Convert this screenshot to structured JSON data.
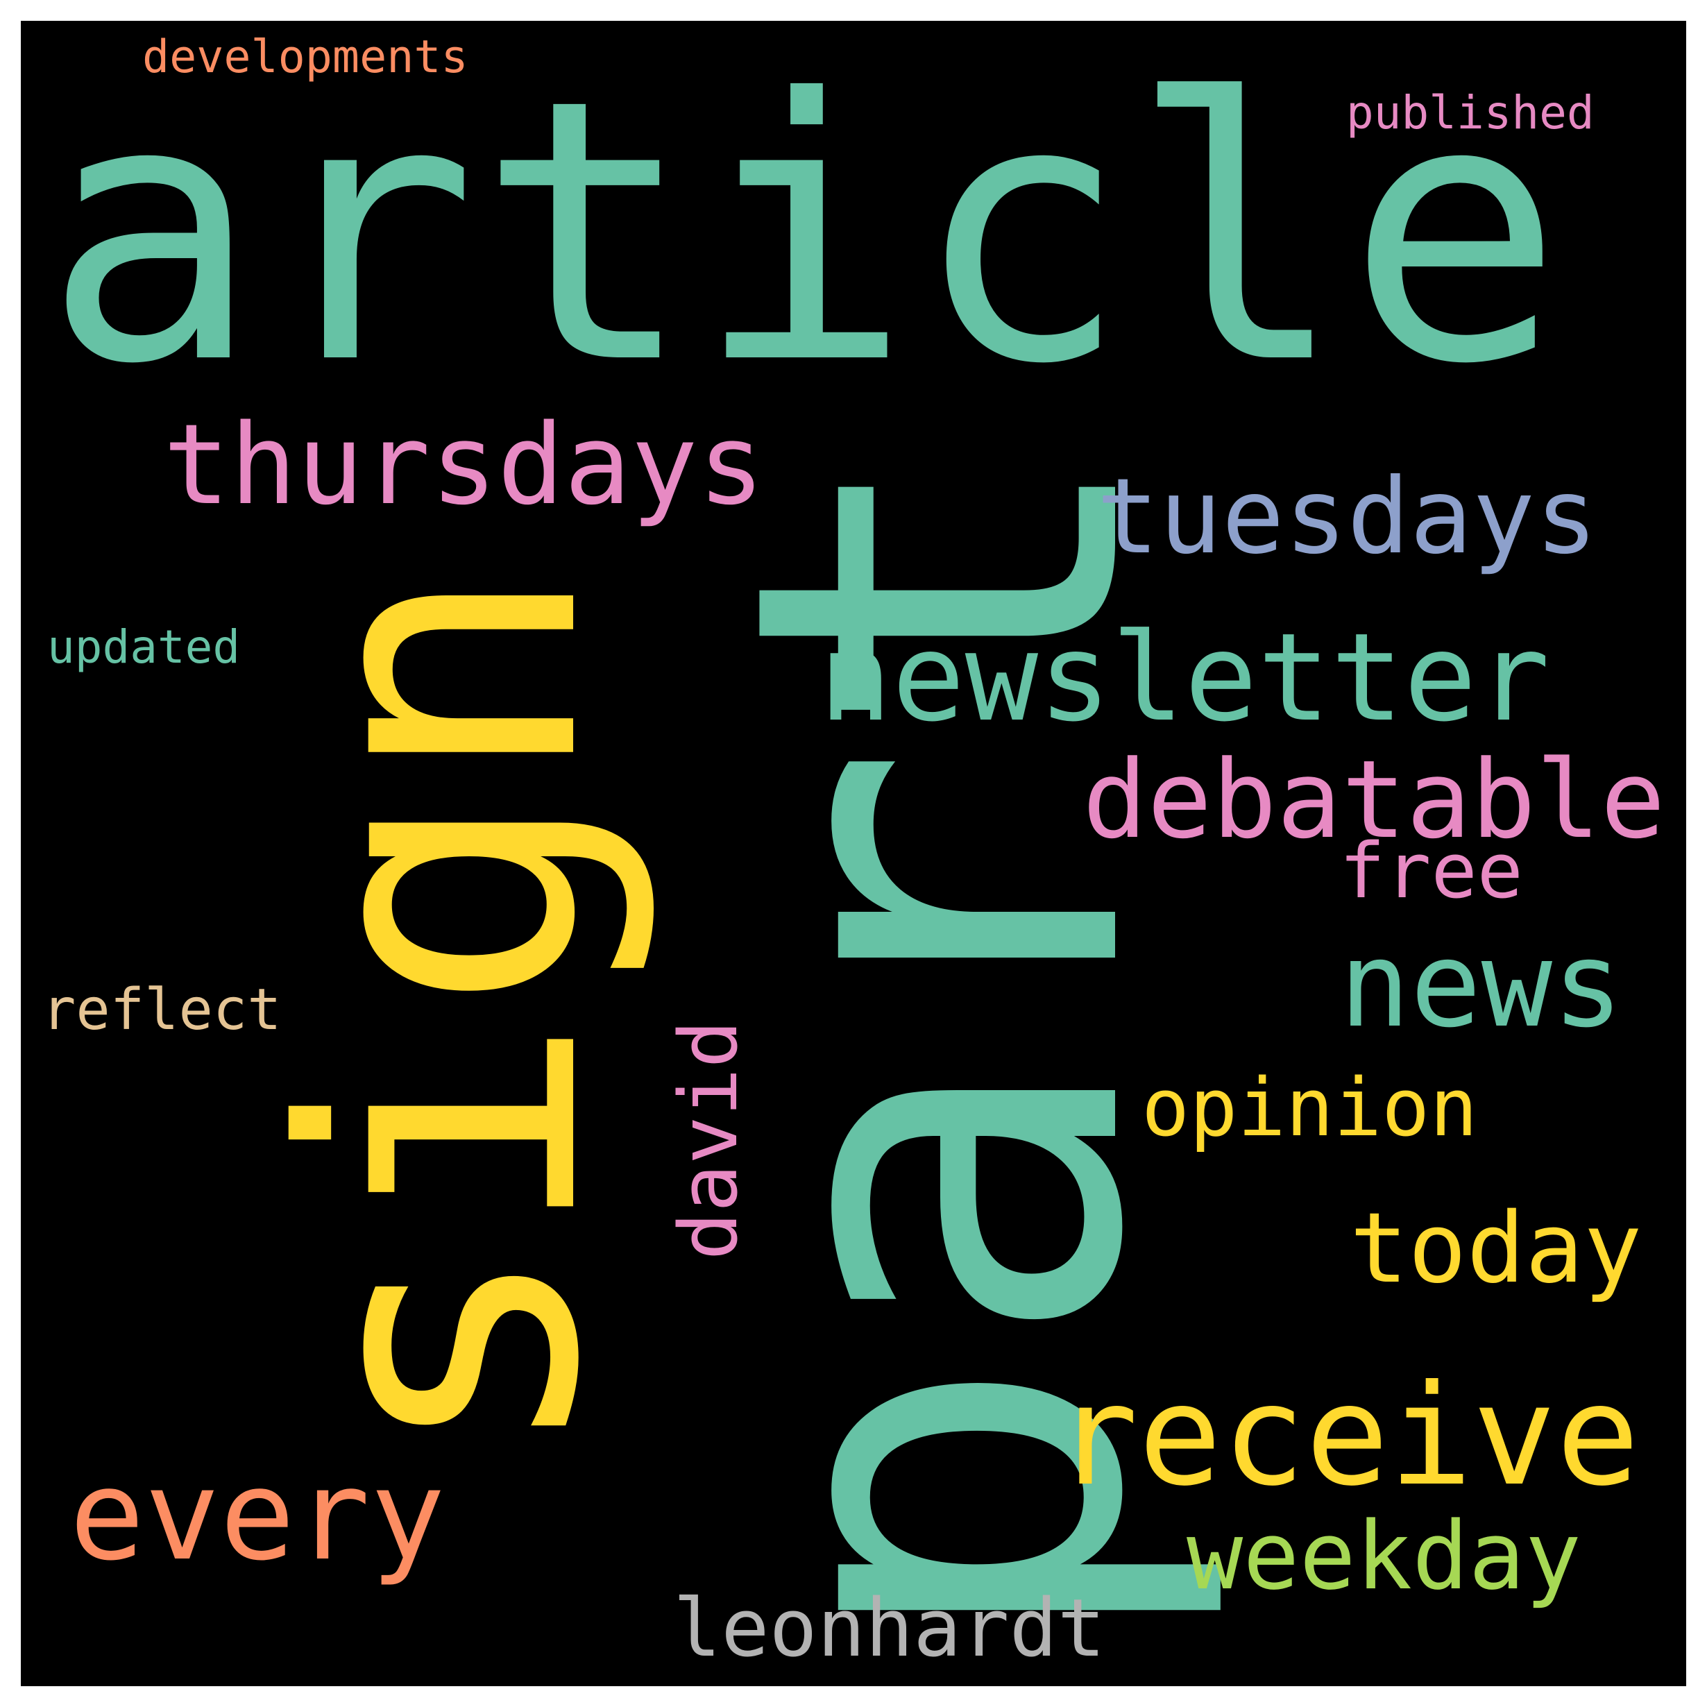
{
  "background_color": "#000000",
  "frame_color": "#ffffff",
  "words": [
    {
      "id": "article",
      "text": "article",
      "color": "#66c2a5",
      "orientation": "horizontal"
    },
    {
      "id": "part",
      "text": "part",
      "color": "#66c2a5",
      "orientation": "vertical"
    },
    {
      "id": "sign",
      "text": "sign",
      "color": "#ffd92f",
      "orientation": "vertical"
    },
    {
      "id": "thursdays",
      "text": "thursdays",
      "color": "#e78ac3",
      "orientation": "horizontal"
    },
    {
      "id": "tuesdays",
      "text": "tuesdays",
      "color": "#8da0cb",
      "orientation": "horizontal"
    },
    {
      "id": "newsletter",
      "text": "newsletter",
      "color": "#66c2a5",
      "orientation": "horizontal"
    },
    {
      "id": "debatable",
      "text": "debatable",
      "color": "#e78ac3",
      "orientation": "horizontal"
    },
    {
      "id": "free",
      "text": "free",
      "color": "#e78ac3",
      "orientation": "horizontal"
    },
    {
      "id": "news",
      "text": "news",
      "color": "#66c2a5",
      "orientation": "horizontal"
    },
    {
      "id": "opinion",
      "text": "opinion",
      "color": "#ffd92f",
      "orientation": "horizontal"
    },
    {
      "id": "today",
      "text": "today",
      "color": "#ffd92f",
      "orientation": "horizontal"
    },
    {
      "id": "receive",
      "text": "receive",
      "color": "#ffd92f",
      "orientation": "horizontal"
    },
    {
      "id": "weekday",
      "text": "weekday",
      "color": "#a6d854",
      "orientation": "horizontal"
    },
    {
      "id": "leonhardt",
      "text": "leonhardt",
      "color": "#b3b3b3",
      "orientation": "horizontal"
    },
    {
      "id": "every",
      "text": "every",
      "color": "#fc8d62",
      "orientation": "horizontal"
    },
    {
      "id": "david",
      "text": "david",
      "color": "#e78ac3",
      "orientation": "vertical"
    },
    {
      "id": "reflect",
      "text": "reflect",
      "color": "#e5c494",
      "orientation": "horizontal"
    },
    {
      "id": "updated",
      "text": "updated",
      "color": "#66c2a5",
      "orientation": "horizontal"
    },
    {
      "id": "developments",
      "text": "developments",
      "color": "#fc8d62",
      "orientation": "horizontal"
    },
    {
      "id": "published",
      "text": "published",
      "color": "#e78ac3",
      "orientation": "horizontal"
    }
  ]
}
